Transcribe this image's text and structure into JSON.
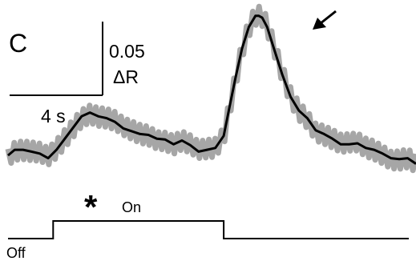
{
  "panel_label": "C",
  "scale_bar": {
    "y_value": "0.05",
    "y_unit": "ΔR",
    "x_value": "4 s"
  },
  "annotations": {
    "asterisk": "*",
    "on_label": "On",
    "off_label": "Off"
  },
  "colors": {
    "trace_mean": "#000000",
    "trace_raw": "#a6a6a6",
    "stimulus": "#000000"
  },
  "chart_data": {
    "type": "line",
    "title": "",
    "xlabel": "",
    "ylabel": "",
    "grid": false,
    "legend": "none",
    "xlim": [
      -2.6,
      21.8
    ],
    "ylim": [
      -0.055,
      0.155
    ],
    "series": [
      {
        "x": [
          -2.6,
          -2.2,
          -1.7,
          -1.2,
          -0.7,
          -0.2,
          0.3,
          0.8,
          1.3,
          1.8,
          2.3,
          2.8,
          3.3,
          3.8,
          4.3,
          4.8,
          5.3,
          5.8,
          6.3,
          6.8,
          7.3,
          7.8,
          8.3,
          8.8,
          9.3,
          9.8,
          10.3,
          10.6,
          11.0,
          11.4,
          11.8,
          12.2,
          12.4,
          12.6,
          12.9,
          13.3,
          13.8,
          14.3,
          14.8,
          15.3,
          15.8,
          16.3,
          16.8,
          17.3,
          17.8,
          18.3,
          18.8,
          19.3,
          19.8,
          20.3,
          20.8,
          21.3,
          21.8
        ],
        "y": [
          0.0,
          0.006,
          0.006,
          0.004,
          0.002,
          -0.003,
          0.006,
          0.018,
          0.03,
          0.042,
          0.046,
          0.042,
          0.04,
          0.036,
          0.029,
          0.026,
          0.023,
          0.022,
          0.018,
          0.017,
          0.012,
          0.016,
          0.011,
          0.004,
          0.006,
          0.008,
          0.021,
          0.048,
          0.083,
          0.115,
          0.138,
          0.15,
          0.15,
          0.148,
          0.138,
          0.115,
          0.087,
          0.063,
          0.048,
          0.04,
          0.027,
          0.023,
          0.018,
          0.012,
          0.012,
          0.013,
          0.008,
          0.006,
          0.002,
          -0.003,
          -0.004,
          -0.003,
          -0.009
        ]
      }
    ],
    "stimulus": {
      "on_start": 0.1,
      "on_end": 10.3,
      "states": [
        "Off",
        "On"
      ]
    }
  }
}
